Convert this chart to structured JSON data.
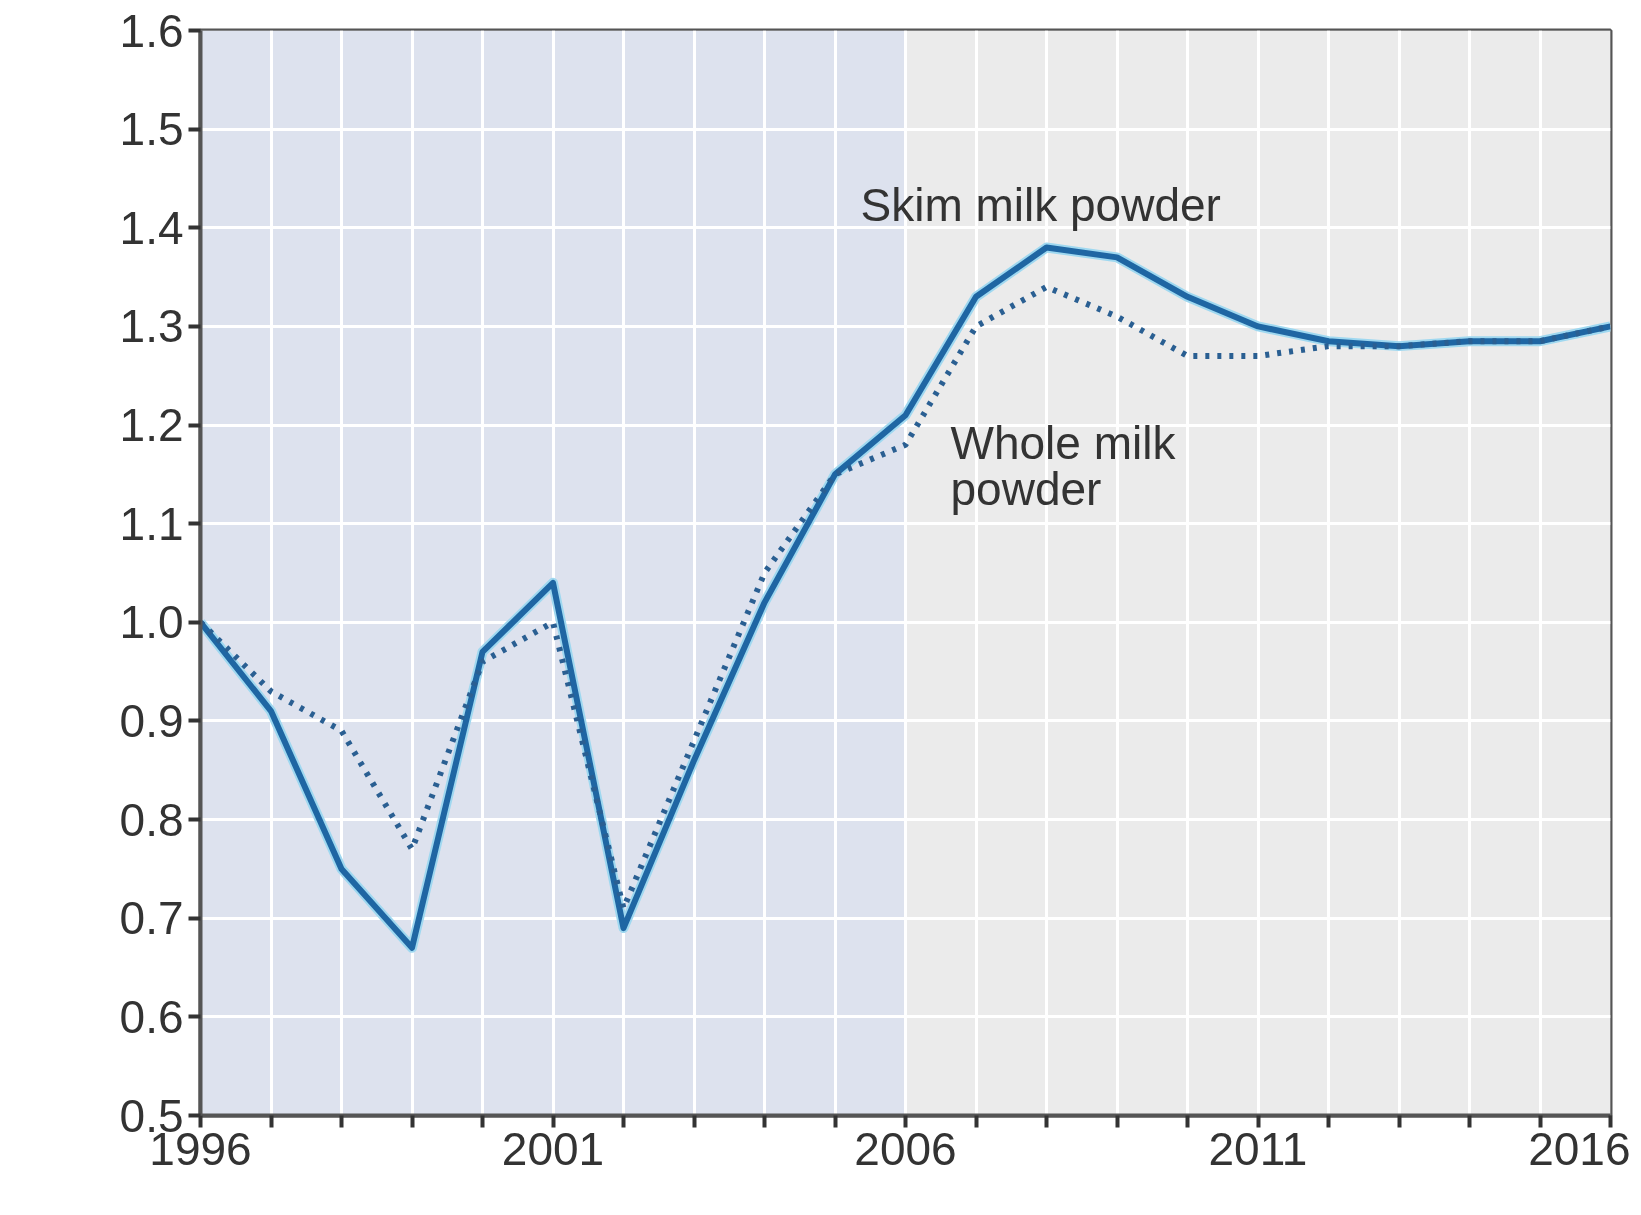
{
  "chart_data": {
    "type": "line",
    "x": [
      1996,
      1997,
      1998,
      1999,
      2000,
      2001,
      2002,
      2003,
      2004,
      2005,
      2006,
      2007,
      2008,
      2009,
      2010,
      2011,
      2012,
      2013,
      2014,
      2015,
      2016
    ],
    "series": [
      {
        "color": "#1f66a3",
        "line_style": "solid",
        "values": [
          1.0,
          0.91,
          0.75,
          0.67,
          0.97,
          1.04,
          0.69,
          0.86,
          1.02,
          1.15,
          1.21,
          1.33,
          1.38,
          1.37,
          1.33,
          1.3,
          1.285,
          1.28,
          1.285,
          1.285,
          1.3
        ]
      },
      {
        "color": "#2a5f92",
        "line_style": "dotted",
        "values": [
          1.0,
          0.93,
          0.89,
          0.77,
          0.96,
          1.0,
          0.71,
          0.88,
          1.05,
          1.15,
          1.18,
          1.3,
          1.34,
          1.31,
          1.27,
          1.27,
          1.28,
          1.28,
          1.285,
          1.285,
          1.3
        ]
      }
    ],
    "annotations": [
      "Skim milk powder",
      "Whole milk\npowder"
    ],
    "xlim": [
      1996,
      2016
    ],
    "xticks": [
      1996,
      {
        "value": 1997,
        "label": null
      },
      {
        "value": 1998,
        "label": null
      },
      {
        "value": 1999,
        "label": null
      },
      {
        "value": 2000,
        "label": null
      },
      2001,
      {
        "value": 2002,
        "label": null
      },
      {
        "value": 2003,
        "label": null
      },
      {
        "value": 2004,
        "label": null
      },
      {
        "value": 2005,
        "label": null
      },
      2006,
      {
        "value": 2007,
        "label": null
      },
      {
        "value": 2008,
        "label": null
      },
      {
        "value": 2009,
        "label": null
      },
      {
        "value": 2010,
        "label": null
      },
      2011,
      {
        "value": 2012,
        "label": null
      },
      {
        "value": 2013,
        "label": null
      },
      {
        "value": 2014,
        "label": null
      },
      {
        "value": 2015,
        "label": null
      },
      2016
    ],
    "ylim": [
      0.5,
      1.6
    ],
    "yticks": [
      0.5,
      0.6,
      0.7,
      0.8,
      0.9,
      {
        "value": 1.0,
        "label": "1.0"
      },
      1.1,
      1.2,
      1.3,
      1.4,
      1.5,
      1.6
    ],
    "bands": [
      {
        "axis": "x",
        "from": 1996,
        "to": 2006,
        "color": "#dde2ee"
      },
      {
        "axis": "x",
        "from": 2006,
        "to": 2016,
        "color": "#ebebeb"
      }
    ],
    "grid": true
  }
}
